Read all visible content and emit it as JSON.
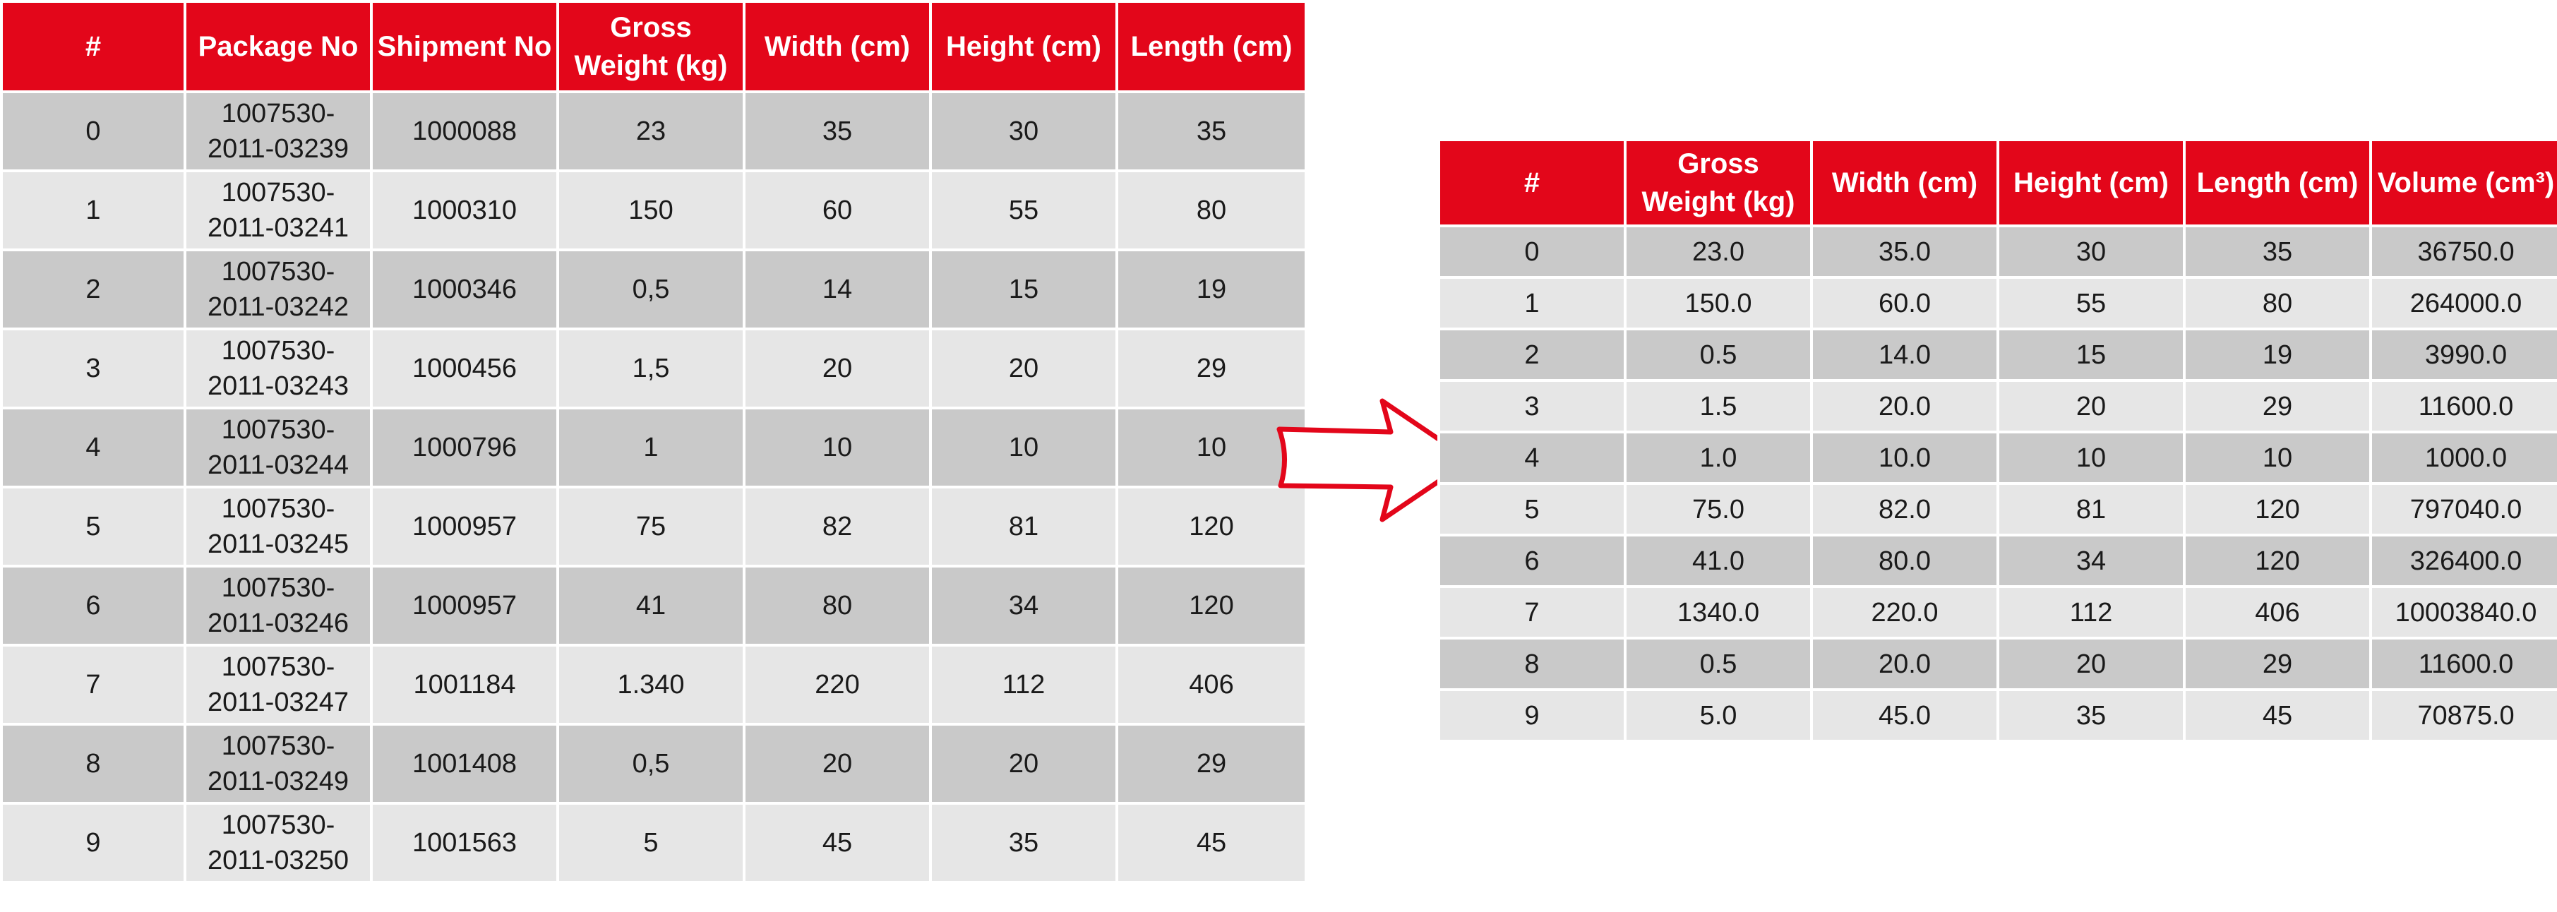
{
  "source_table": {
    "headers": [
      "#",
      "Package No",
      "Shipment No",
      "Gross Weight (kg)",
      "Width (cm)",
      "Height (cm)",
      "Length (cm)"
    ],
    "rows": [
      [
        "0",
        "1007530-2011-03239",
        "1000088",
        "23",
        "35",
        "30",
        "35"
      ],
      [
        "1",
        "1007530-2011-03241",
        "1000310",
        "150",
        "60",
        "55",
        "80"
      ],
      [
        "2",
        "1007530-2011-03242",
        "1000346",
        "0,5",
        "14",
        "15",
        "19"
      ],
      [
        "3",
        "1007530-2011-03243",
        "1000456",
        "1,5",
        "20",
        "20",
        "29"
      ],
      [
        "4",
        "1007530-2011-03244",
        "1000796",
        "1",
        "10",
        "10",
        "10"
      ],
      [
        "5",
        "1007530-2011-03245",
        "1000957",
        "75",
        "82",
        "81",
        "120"
      ],
      [
        "6",
        "1007530-2011-03246",
        "1000957",
        "41",
        "80",
        "34",
        "120"
      ],
      [
        "7",
        "1007530-2011-03247",
        "1001184",
        "1.340",
        "220",
        "112",
        "406"
      ],
      [
        "8",
        "1007530-2011-03249",
        "1001408",
        "0,5",
        "20",
        "20",
        "29"
      ],
      [
        "9",
        "1007530-2011-03250",
        "1001563",
        "5",
        "45",
        "35",
        "45"
      ]
    ]
  },
  "result_table": {
    "headers": [
      "#",
      "Gross Weight (kg)",
      "Width (cm)",
      "Height (cm)",
      "Length (cm)",
      "Volume (cm³)"
    ],
    "rows": [
      [
        "0",
        "23.0",
        "35.0",
        "30",
        "35",
        "36750.0"
      ],
      [
        "1",
        "150.0",
        "60.0",
        "55",
        "80",
        "264000.0"
      ],
      [
        "2",
        "0.5",
        "14.0",
        "15",
        "19",
        "3990.0"
      ],
      [
        "3",
        "1.5",
        "20.0",
        "20",
        "29",
        "11600.0"
      ],
      [
        "4",
        "1.0",
        "10.0",
        "10",
        "10",
        "1000.0"
      ],
      [
        "5",
        "75.0",
        "82.0",
        "81",
        "120",
        "797040.0"
      ],
      [
        "6",
        "41.0",
        "80.0",
        "34",
        "120",
        "326400.0"
      ],
      [
        "7",
        "1340.0",
        "220.0",
        "112",
        "406",
        "10003840.0"
      ],
      [
        "8",
        "0.5",
        "20.0",
        "20",
        "29",
        "11600.0"
      ],
      [
        "9",
        "5.0",
        "45.0",
        "35",
        "45",
        "70875.0"
      ]
    ]
  },
  "arrow": {
    "icon": "right-arrow-icon",
    "color": "#e3061a"
  },
  "colors": {
    "header": "#e3061a",
    "row_dark": "#c9c9c9",
    "row_light": "#e6e6e6"
  }
}
